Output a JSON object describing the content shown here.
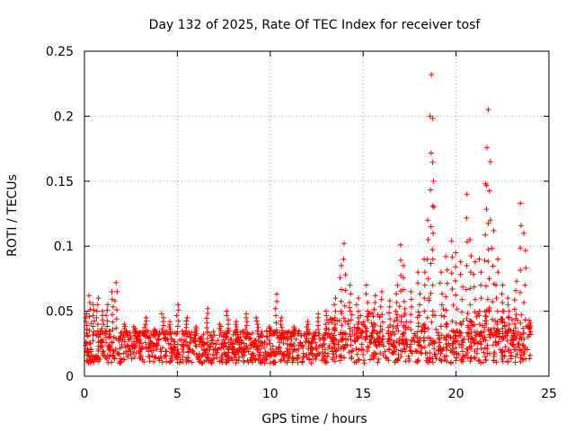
{
  "chart_data": {
    "type": "scatter",
    "title": "Day 132 of 2025, Rate Of TEC Index for receiver tosf",
    "xlabel": "GPS time / hours",
    "ylabel": "ROTI / TECUs",
    "xlim": [
      0,
      25
    ],
    "ylim": [
      0,
      0.25
    ],
    "xticks": [
      0,
      5,
      10,
      15,
      20,
      25
    ],
    "xtick_labels": [
      "0",
      "5",
      "10",
      "15",
      "20",
      "25"
    ],
    "yticks": [
      0,
      0.05,
      0.1,
      0.15,
      0.2,
      0.25
    ],
    "ytick_labels": [
      "0",
      "0.05",
      "0.1",
      "0.15",
      "0.2",
      "0.25"
    ],
    "grid": true,
    "marker": "+",
    "series": [
      {
        "name": "ROTI",
        "color": "#ff0000",
        "baseline_band": {
          "x_range": [
            0.05,
            24.0
          ],
          "y_range": [
            0.01,
            0.035
          ]
        },
        "x": [
          0.1,
          0.3,
          0.5,
          0.7,
          1.0,
          1.2,
          1.5,
          1.7,
          2.2,
          2.7,
          3.3,
          3.8,
          4.2,
          4.6,
          5.0,
          5.5,
          6.0,
          6.6,
          7.3,
          7.7,
          8.2,
          8.7,
          9.3,
          10.0,
          10.3,
          10.6,
          11.3,
          12.0,
          12.6,
          13.0,
          13.5,
          13.8,
          14.0,
          14.3,
          14.7,
          15.2,
          15.6,
          16.0,
          16.4,
          16.8,
          17.0,
          17.2,
          17.6,
          18.0,
          18.3,
          18.5,
          18.6,
          18.7,
          18.8,
          19.2,
          19.5,
          19.8,
          20.0,
          20.3,
          20.6,
          20.8,
          21.0,
          21.3,
          21.6,
          21.7,
          21.8,
          22.0,
          22.2,
          22.5,
          22.8,
          23.2,
          23.5,
          23.7,
          24.0
        ],
        "y": [
          0.048,
          0.062,
          0.055,
          0.06,
          0.05,
          0.055,
          0.065,
          0.072,
          0.04,
          0.038,
          0.045,
          0.036,
          0.048,
          0.042,
          0.055,
          0.045,
          0.038,
          0.052,
          0.04,
          0.05,
          0.042,
          0.048,
          0.045,
          0.038,
          0.063,
          0.045,
          0.038,
          0.042,
          0.048,
          0.05,
          0.06,
          0.085,
          0.102,
          0.07,
          0.06,
          0.07,
          0.062,
          0.065,
          0.058,
          0.07,
          0.101,
          0.085,
          0.065,
          0.08,
          0.09,
          0.12,
          0.2,
          0.232,
          0.15,
          0.08,
          0.092,
          0.104,
          0.095,
          0.088,
          0.14,
          0.105,
          0.088,
          0.09,
          0.148,
          0.205,
          0.165,
          0.112,
          0.09,
          0.07,
          0.06,
          0.073,
          0.133,
          0.11,
          0.043
        ]
      }
    ]
  }
}
